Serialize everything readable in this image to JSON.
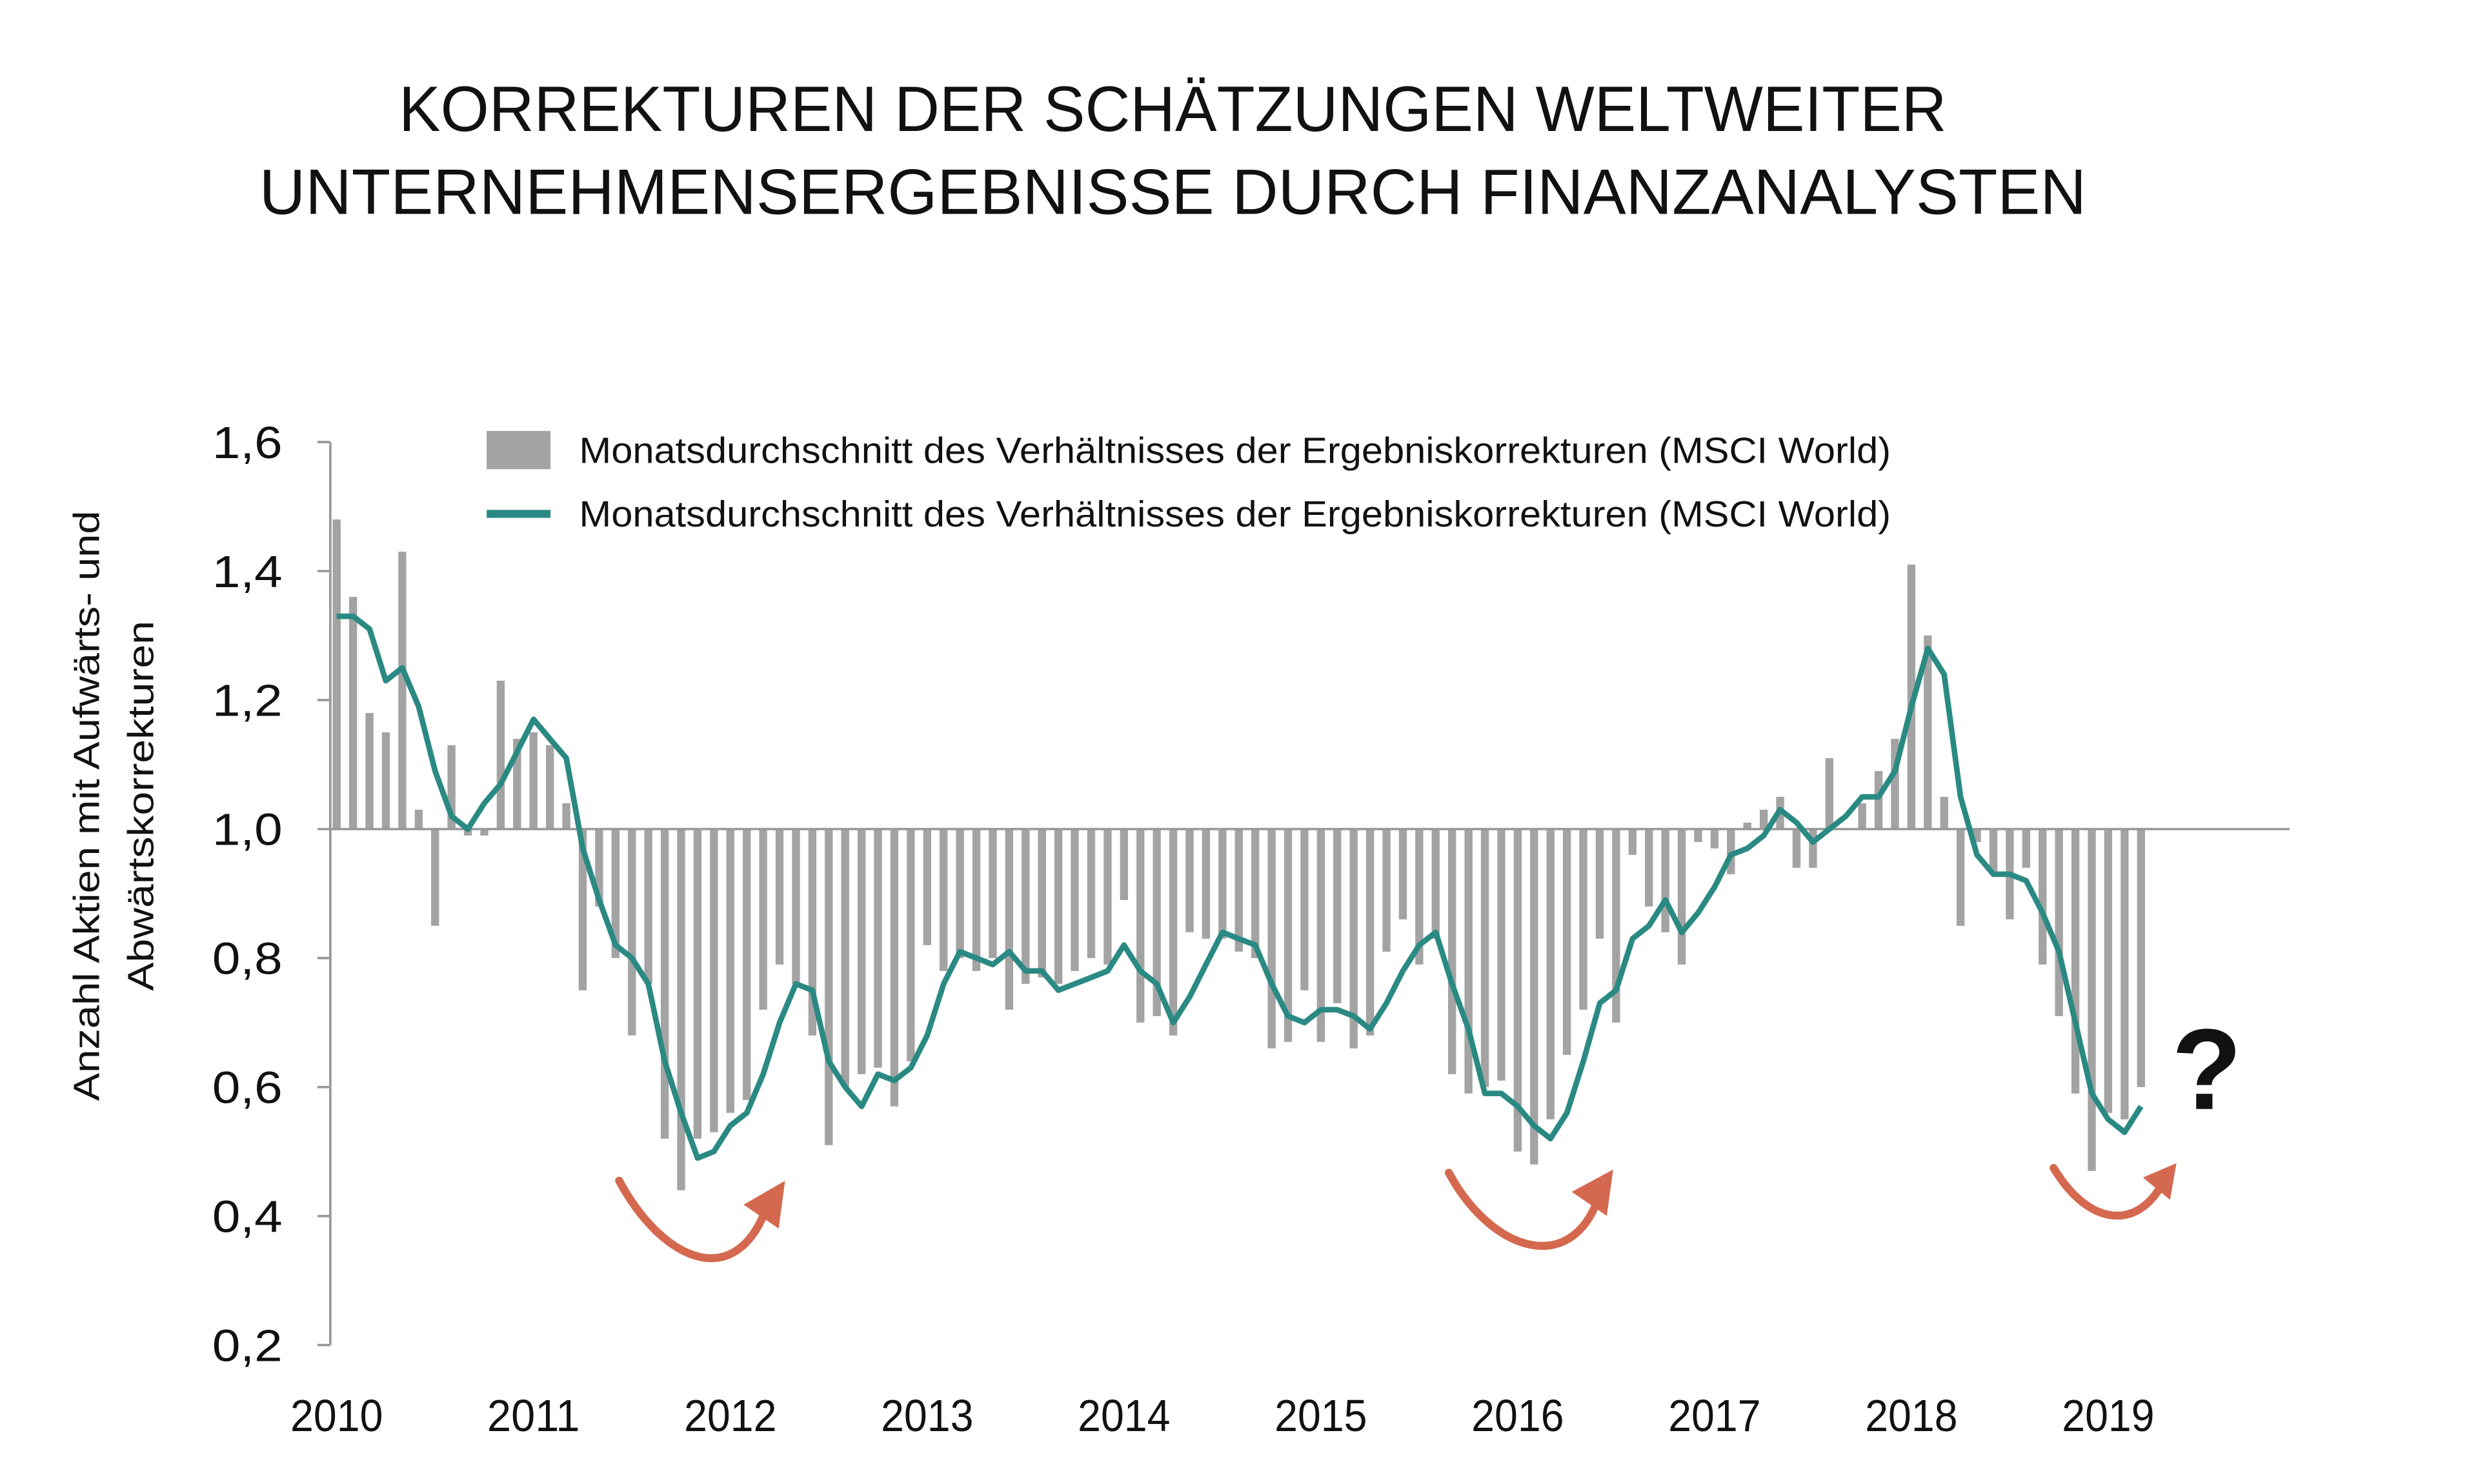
{
  "chart_data": {
    "type": "bar",
    "title": [
      "KORREKTUREN DER SCHÄTZUNGEN WELTWEITER",
      "UNTERNEHMENSERGEBNISSE DURCH FINANZANALYSTEN"
    ],
    "y_label": [
      "Anzahl Aktien mit Aufwärts- und",
      "Abwärtskorrekturen"
    ],
    "annotation": "?",
    "categories": [
      "2010",
      null,
      null,
      null,
      null,
      null,
      null,
      null,
      null,
      null,
      null,
      null,
      "2011",
      null,
      null,
      null,
      null,
      null,
      null,
      null,
      null,
      null,
      null,
      null,
      "2012",
      null,
      null,
      null,
      null,
      null,
      null,
      null,
      null,
      null,
      null,
      null,
      "2013",
      null,
      null,
      null,
      null,
      null,
      null,
      null,
      null,
      null,
      null,
      null,
      "2014",
      null,
      null,
      null,
      null,
      null,
      null,
      null,
      null,
      null,
      null,
      null,
      "2015",
      null,
      null,
      null,
      null,
      null,
      null,
      null,
      null,
      null,
      null,
      null,
      "2016",
      null,
      null,
      null,
      null,
      null,
      null,
      null,
      null,
      null,
      null,
      null,
      "2017",
      null,
      null,
      null,
      null,
      null,
      null,
      null,
      null,
      null,
      null,
      null,
      "2018",
      null,
      null,
      null,
      null,
      null,
      null,
      null,
      null,
      null,
      null,
      null,
      "2019",
      null,
      null
    ],
    "series": [
      {
        "name": "Monatsdurchschnitt des Verhältnisses der Ergebniskorrekturen (MSCI World)",
        "type": "bar",
        "color": "#a3a3a3",
        "values": [
          1.48,
          1.36,
          1.18,
          1.15,
          1.43,
          1.03,
          0.85,
          1.13,
          0.99,
          0.99,
          1.23,
          1.14,
          1.15,
          1.13,
          1.04,
          0.75,
          0.88,
          0.8,
          0.68,
          0.76,
          0.52,
          0.44,
          0.52,
          0.53,
          0.56,
          0.58,
          0.72,
          0.79,
          0.76,
          0.68,
          0.51,
          0.6,
          0.62,
          0.63,
          0.57,
          0.64,
          0.82,
          0.78,
          0.8,
          0.78,
          0.8,
          0.72,
          0.76,
          0.77,
          0.76,
          0.78,
          0.8,
          0.79,
          0.89,
          0.7,
          0.71,
          0.68,
          0.84,
          0.83,
          0.83,
          0.81,
          0.8,
          0.66,
          0.67,
          0.75,
          0.67,
          0.73,
          0.66,
          0.68,
          0.81,
          0.86,
          0.79,
          0.83,
          0.62,
          0.59,
          0.6,
          0.61,
          0.5,
          0.48,
          0.55,
          0.65,
          0.72,
          0.83,
          0.7,
          0.96,
          0.88,
          0.84,
          0.79,
          0.98,
          0.97,
          0.93,
          1.01,
          1.03,
          1.05,
          0.94,
          0.94,
          1.11,
          1.0,
          1.04,
          1.09,
          1.14,
          1.41,
          1.3,
          1.05,
          0.85,
          0.98,
          0.93,
          0.86,
          0.94,
          0.79,
          0.71,
          0.59,
          0.47,
          0.56,
          0.55,
          0.6
        ]
      },
      {
        "name": "Monatsdurchschnitt des Verhältnisses der Ergebniskorrekturen (MSCI World)",
        "type": "line",
        "color": "#2a8a83",
        "values": [
          1.33,
          1.33,
          1.31,
          1.23,
          1.25,
          1.19,
          1.09,
          1.02,
          1.0,
          1.04,
          1.07,
          1.12,
          1.17,
          1.14,
          1.11,
          0.97,
          0.89,
          0.82,
          0.8,
          0.76,
          0.64,
          0.56,
          0.49,
          0.5,
          0.54,
          0.56,
          0.62,
          0.7,
          0.76,
          0.75,
          0.64,
          0.6,
          0.57,
          0.62,
          0.61,
          0.63,
          0.68,
          0.76,
          0.81,
          0.8,
          0.79,
          0.81,
          0.78,
          0.78,
          0.75,
          0.76,
          0.77,
          0.78,
          0.82,
          0.78,
          0.76,
          0.7,
          0.74,
          0.79,
          0.84,
          0.83,
          0.82,
          0.76,
          0.71,
          0.7,
          0.72,
          0.72,
          0.71,
          0.69,
          0.73,
          0.78,
          0.82,
          0.84,
          0.76,
          0.69,
          0.59,
          0.59,
          0.57,
          0.54,
          0.52,
          0.56,
          0.64,
          0.73,
          0.75,
          0.83,
          0.85,
          0.89,
          0.84,
          0.87,
          0.91,
          0.96,
          0.97,
          0.99,
          1.03,
          1.01,
          0.98,
          1.0,
          1.02,
          1.05,
          1.05,
          1.09,
          1.19,
          1.28,
          1.24,
          1.05,
          0.96,
          0.93,
          0.93,
          0.92,
          0.87,
          0.81,
          0.7,
          0.59,
          0.55,
          0.53,
          0.57
        ]
      }
    ],
    "bar_base": 1.0,
    "ylim": [
      0.2,
      1.6
    ],
    "yticks": [
      {
        "value": 0.2,
        "label": "0,2"
      },
      {
        "value": 0.4,
        "label": "0,4"
      },
      {
        "value": 0.6,
        "label": "0,6"
      },
      {
        "value": 0.8,
        "label": "0,8"
      },
      {
        "value": 1.0,
        "label": "1,0"
      },
      {
        "value": 1.2,
        "label": "1,2"
      },
      {
        "value": 1.4,
        "label": "1,4"
      },
      {
        "value": 1.6,
        "label": "1,6"
      }
    ],
    "grid": false
  }
}
